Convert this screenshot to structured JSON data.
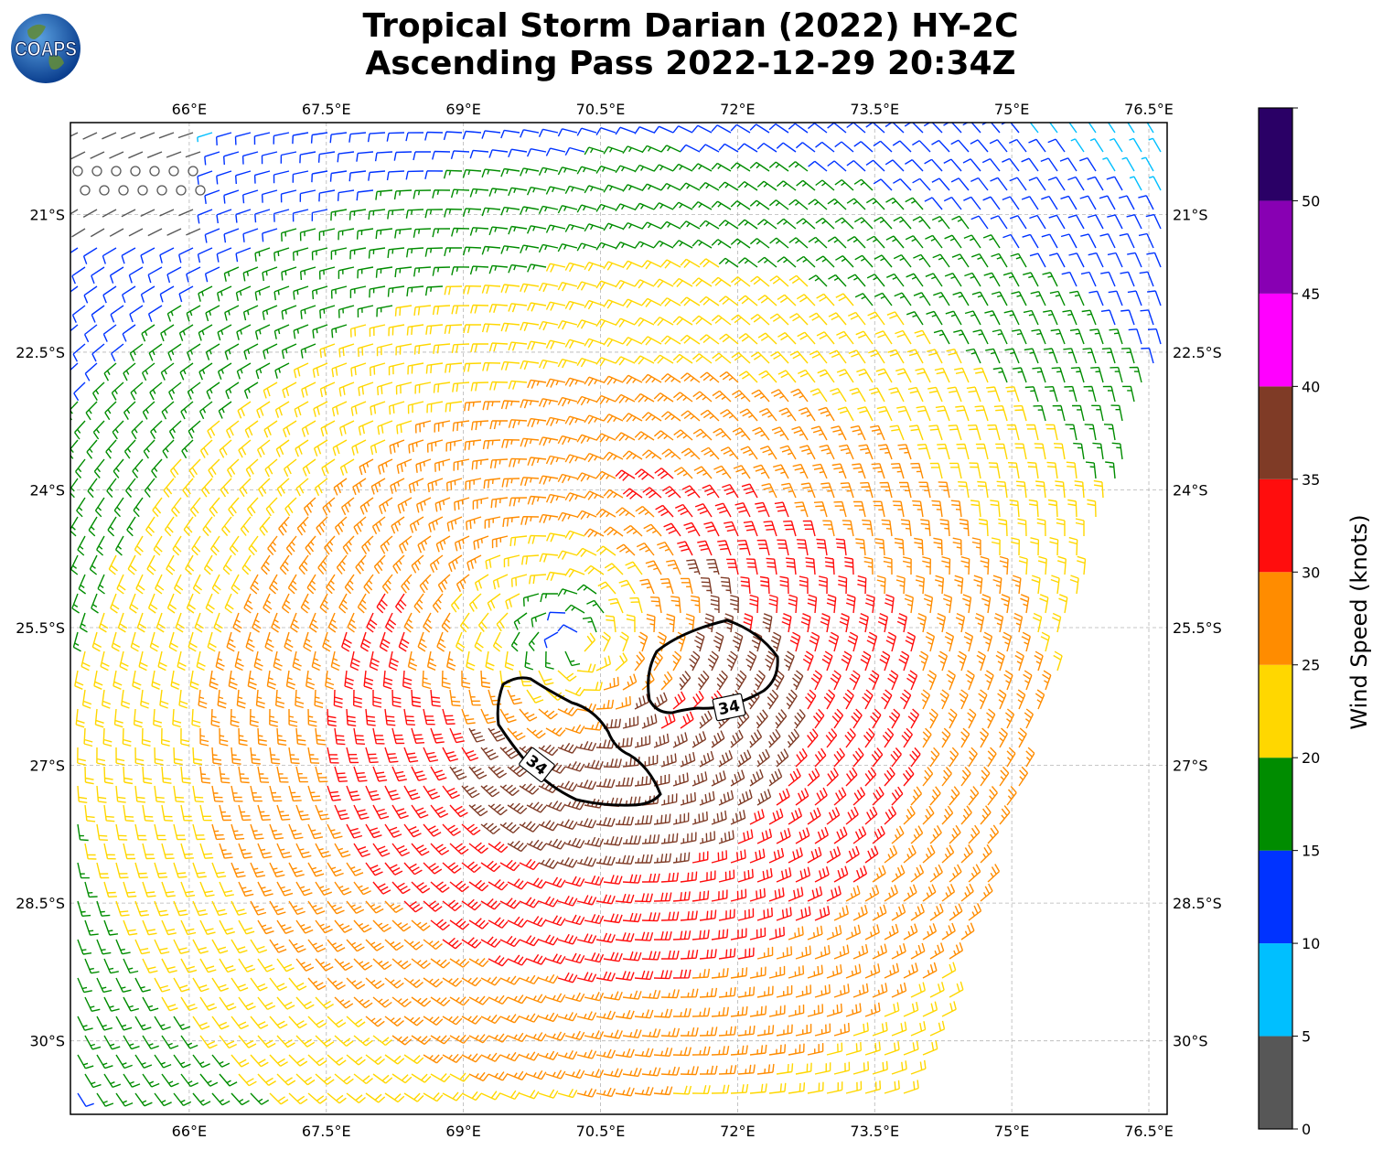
{
  "title": {
    "line1": "Tropical Storm Darian (2022) HY-2C",
    "line2": "Ascending Pass 2022-12-29 20:34Z"
  },
  "logo": {
    "text": "COAPS",
    "icon": "globe-icon"
  },
  "map": {
    "lon_ticks": [
      "66°E",
      "67.5°E",
      "69°E",
      "70.5°E",
      "72°E",
      "73.5°E",
      "75°E",
      "76.5°E"
    ],
    "lat_ticks": [
      "21°S",
      "22.5°S",
      "24°S",
      "25.5°S",
      "27°S",
      "28.5°S",
      "30°S"
    ],
    "lon_values": [
      66,
      67.5,
      69,
      70.5,
      72,
      73.5,
      75,
      76.5
    ],
    "lat_values": [
      -21,
      -22.5,
      -24,
      -25.5,
      -27,
      -28.5,
      -30
    ],
    "extent": {
      "lon_min": 64.7,
      "lon_max": 76.7,
      "lat_min": -30.8,
      "lat_max": -20.0
    },
    "gridlines": true,
    "storm_center": {
      "lon": 70.2,
      "lat": -25.7
    },
    "contour_label": "34",
    "contour_level_knots": 34
  },
  "colorbar": {
    "label": "Wind Speed (knots)",
    "ticks": [
      "0",
      "5",
      "10",
      "15",
      "20",
      "25",
      "30",
      "35",
      "40",
      "45",
      "50"
    ],
    "bins": [
      {
        "min": 0,
        "max": 5,
        "color": "#575757"
      },
      {
        "min": 5,
        "max": 10,
        "color": "#00bfff"
      },
      {
        "min": 10,
        "max": 15,
        "color": "#0033ff"
      },
      {
        "min": 15,
        "max": 20,
        "color": "#008c00"
      },
      {
        "min": 20,
        "max": 25,
        "color": "#ffd700"
      },
      {
        "min": 25,
        "max": 30,
        "color": "#ff8c00"
      },
      {
        "min": 30,
        "max": 35,
        "color": "#ff0d0d"
      },
      {
        "min": 35,
        "max": 40,
        "color": "#7f3b26"
      },
      {
        "min": 40,
        "max": 45,
        "color": "#ff00ff"
      },
      {
        "min": 45,
        "max": 50,
        "color": "#8800b3"
      },
      {
        "min": 50,
        "max": 55,
        "color": "#2a0066"
      }
    ]
  }
}
